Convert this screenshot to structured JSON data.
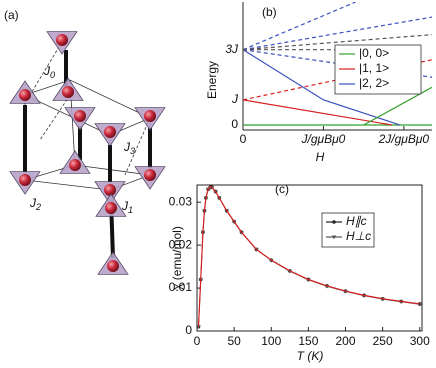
{
  "diagram": {
    "label": "(a)",
    "couplings": [
      {
        "symbol": "J",
        "index": "0"
      },
      {
        "symbol": "J",
        "index": "3"
      },
      {
        "symbol": "J",
        "index": "2"
      },
      {
        "symbol": "J",
        "index": "1"
      }
    ]
  },
  "chart_data": [
    {
      "type": "line",
      "label": "(b)",
      "x_label": "H",
      "y_label": "Energy",
      "xlim": [
        0,
        2.35
      ],
      "ylim": [
        -0.2,
        4.9
      ],
      "xticks": [
        0,
        {
          "value": 1,
          "label": "J/gμBμ0"
        },
        {
          "value": 2,
          "label": "2J/gμBμ0"
        }
      ],
      "yticks": [
        0,
        {
          "value": 1,
          "label": "J"
        },
        {
          "value": 3,
          "label": "3J"
        }
      ],
      "legend": "upper right",
      "series": [
        {
          "name": "|0, 0>",
          "color": "#33a02c",
          "x": [
            0,
            2.35
          ],
          "values": [
            0,
            0
          ]
        },
        {
          "name": "|1, 1>",
          "color": "#d62020",
          "x": [
            0,
            1.85
          ],
          "values": [
            1,
            0
          ]
        },
        {
          "name": "|2, 2>",
          "color": "#3a50c0",
          "x": [
            0,
            1,
            1.95
          ],
          "values": [
            3,
            1,
            0
          ]
        },
        {
          "color": "#33a02c",
          "x": [
            1.5,
            2.35
          ],
          "values": [
            0,
            1.5
          ]
        },
        {
          "color": "#d62020",
          "dash": true,
          "x": [
            0,
            2.35
          ],
          "values": [
            1,
            2.6
          ]
        },
        {
          "color": "#3a50c0",
          "dash": true,
          "x": [
            0,
            2.35
          ],
          "values": [
            3,
            4.3
          ]
        },
        {
          "color": "#3a50c0",
          "dash": true,
          "x": [
            0,
            1.4
          ],
          "values": [
            3,
            4.9
          ]
        },
        {
          "color": "#3a50c0",
          "dash": true,
          "x": [
            0,
            2.35
          ],
          "values": [
            3,
            1.9
          ]
        },
        {
          "color": "#555555",
          "dash": true,
          "x": [
            0,
            2.35
          ],
          "values": [
            3,
            3.6
          ]
        },
        {
          "color": "#555555",
          "dash": true,
          "x": [
            0,
            1.3
          ],
          "values": [
            3,
            3
          ]
        }
      ]
    },
    {
      "type": "line",
      "label": "(c)",
      "x_label": "T (K)",
      "y_label": "χ (emu/mol)",
      "xlim": [
        0,
        303
      ],
      "ylim": [
        0,
        0.034
      ],
      "xticks": [
        0,
        50,
        100,
        150,
        200,
        250,
        300
      ],
      "yticks": [
        0,
        0.01,
        0.02,
        0.03
      ],
      "legend": "upper right",
      "x": [
        2,
        5,
        8,
        10,
        12,
        15,
        18,
        20,
        25,
        30,
        40,
        50,
        60,
        80,
        100,
        125,
        150,
        175,
        200,
        225,
        250,
        275,
        300
      ],
      "series": [
        {
          "name": "H∥c",
          "color": "#222222",
          "marker": "circle",
          "values": [
            0.001,
            0.012,
            0.023,
            0.028,
            0.031,
            0.033,
            0.0335,
            0.0335,
            0.0325,
            0.031,
            0.028,
            0.0255,
            0.023,
            0.019,
            0.0165,
            0.014,
            0.012,
            0.0105,
            0.0093,
            0.0083,
            0.0075,
            0.0069,
            0.0063
          ]
        },
        {
          "name": "H⊥c",
          "color": "#555555",
          "marker": "triangle",
          "values": [
            0.001,
            0.012,
            0.023,
            0.028,
            0.031,
            0.033,
            0.0334,
            0.0334,
            0.0324,
            0.031,
            0.028,
            0.0254,
            0.0229,
            0.019,
            0.0164,
            0.0139,
            0.0119,
            0.0104,
            0.0092,
            0.0082,
            0.0074,
            0.0068,
            0.0062
          ]
        },
        {
          "color": "#d62020",
          "values": [
            0.001,
            0.012,
            0.023,
            0.028,
            0.031,
            0.033,
            0.0336,
            0.0335,
            0.0325,
            0.031,
            0.028,
            0.0255,
            0.023,
            0.019,
            0.0165,
            0.014,
            0.012,
            0.0105,
            0.0093,
            0.0083,
            0.0075,
            0.0069,
            0.0063
          ]
        }
      ]
    }
  ]
}
